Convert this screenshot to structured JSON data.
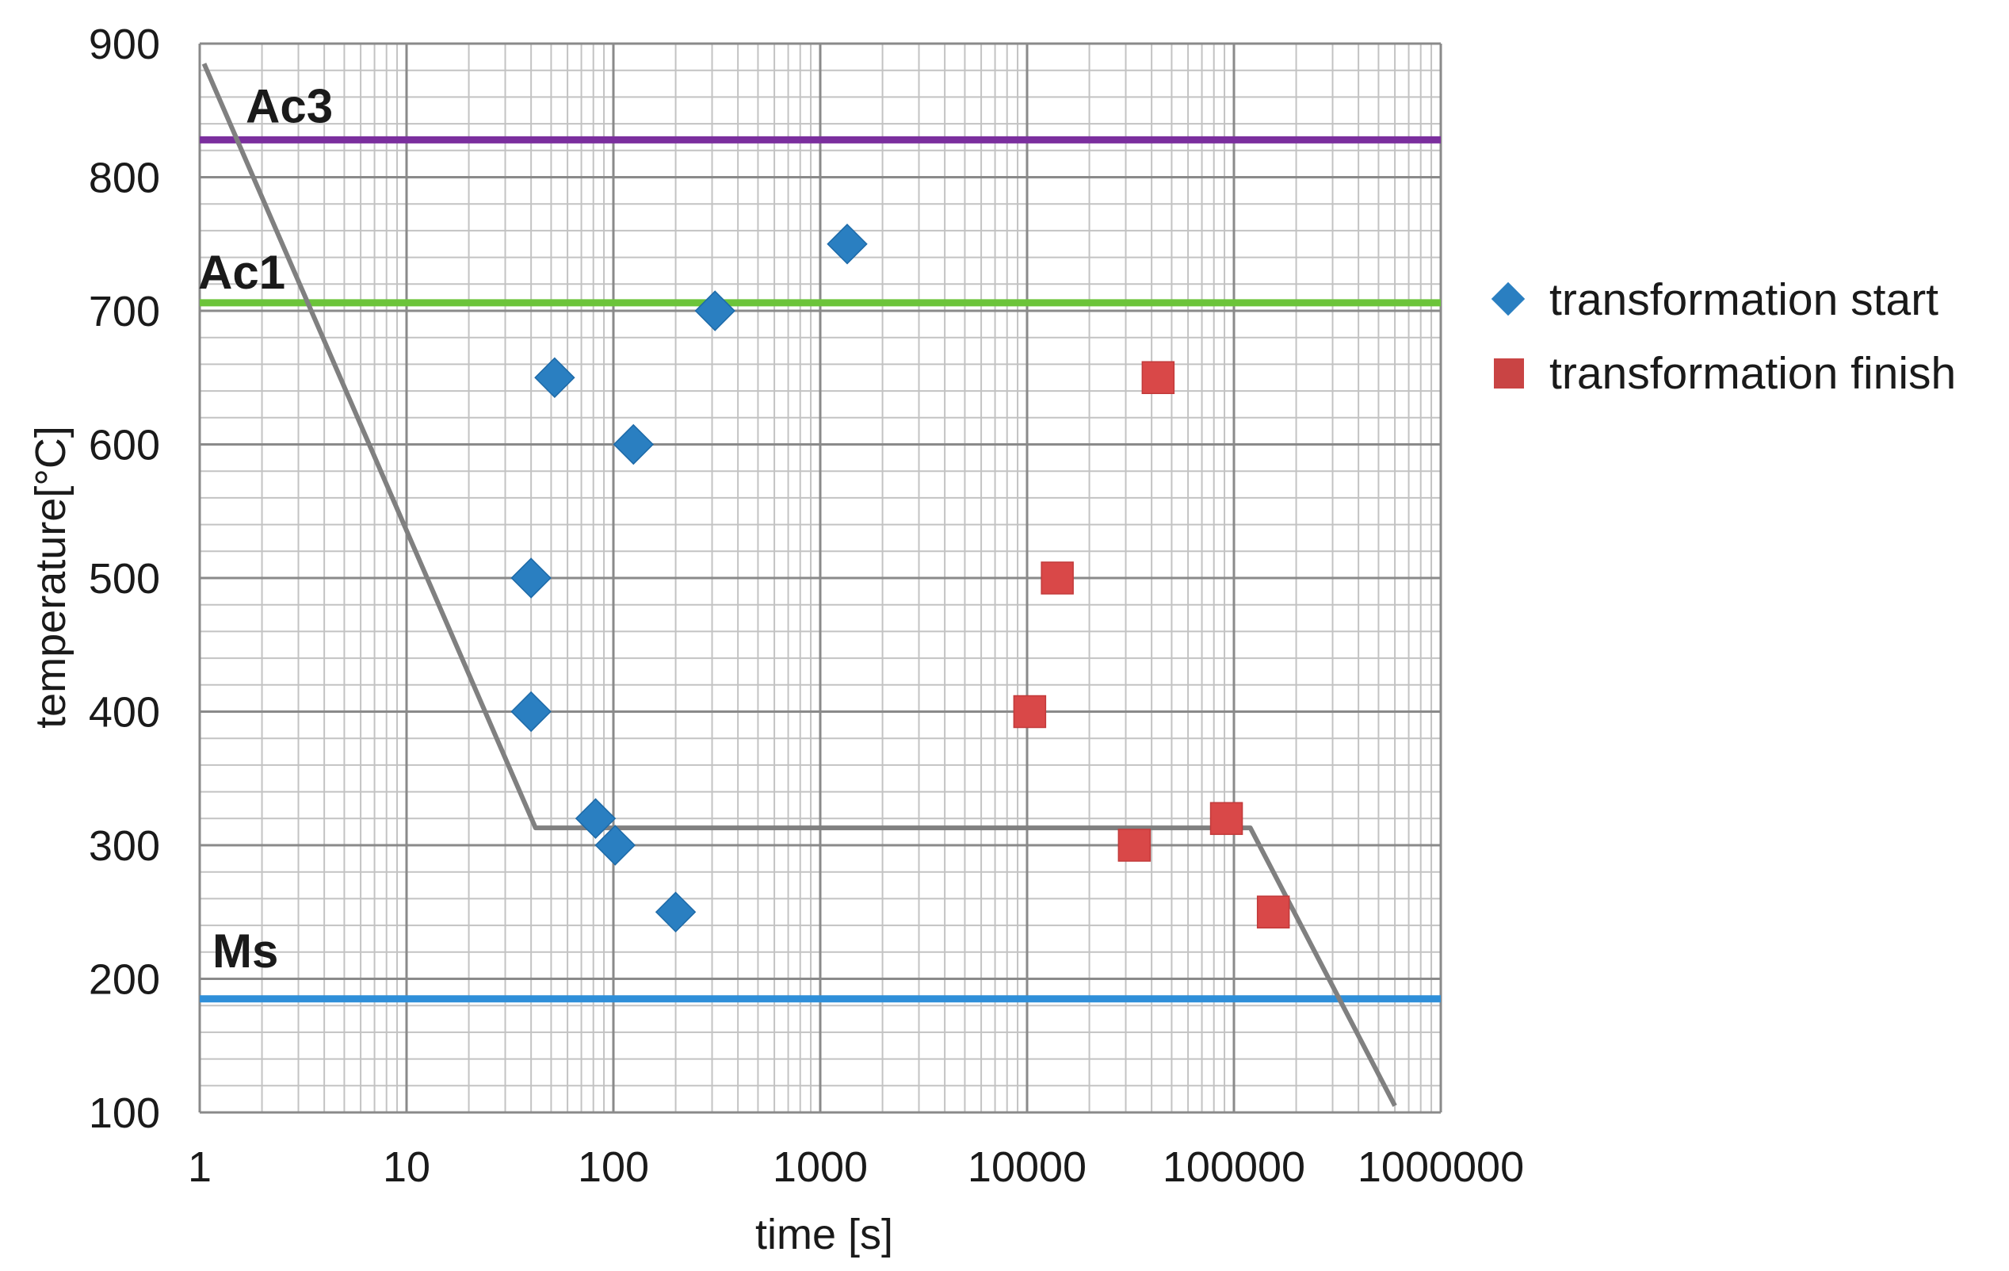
{
  "chart_data": {
    "type": "scatter",
    "xscale": "log",
    "xlim": [
      1,
      1000000
    ],
    "ylim": [
      100,
      900
    ],
    "xlabel": "time [s]",
    "ylabel": "temperature[°C]",
    "x_ticks": [
      "1",
      "10",
      "100",
      "1000",
      "10000",
      "100000",
      "1000000"
    ],
    "y_ticks": [
      "100",
      "200",
      "300",
      "400",
      "500",
      "600",
      "700",
      "800",
      "900"
    ],
    "grid": true,
    "legend_position": "right",
    "series": [
      {
        "name": "transformation start",
        "marker": "diamond",
        "color": "#2a7fc1",
        "points": [
          {
            "x": 40,
            "y": 400
          },
          {
            "x": 40,
            "y": 500
          },
          {
            "x": 52,
            "y": 650
          },
          {
            "x": 82,
            "y": 320
          },
          {
            "x": 102,
            "y": 300
          },
          {
            "x": 125,
            "y": 600
          },
          {
            "x": 200,
            "y": 250
          },
          {
            "x": 310,
            "y": 700
          },
          {
            "x": 1350,
            "y": 750
          }
        ]
      },
      {
        "name": "transformation finish",
        "marker": "square",
        "color": "#d94848",
        "points": [
          {
            "x": 10300,
            "y": 400
          },
          {
            "x": 14000,
            "y": 500
          },
          {
            "x": 33000,
            "y": 300
          },
          {
            "x": 43000,
            "y": 650
          },
          {
            "x": 92000,
            "y": 320
          },
          {
            "x": 155000,
            "y": 250
          }
        ]
      }
    ],
    "reference_lines": [
      {
        "label": "Ac3",
        "y": 828,
        "color": "#7b2f9e"
      },
      {
        "label": "Ac1",
        "y": 706,
        "color": "#6cc43a"
      },
      {
        "label": "Ms",
        "y": 185,
        "color": "#2f8fd9"
      }
    ],
    "cooling_curve": {
      "color": "#808080",
      "points": [
        {
          "x": 1.05,
          "y": 885
        },
        {
          "x": 42,
          "y": 313
        },
        {
          "x": 120000,
          "y": 313
        },
        {
          "x": 600000,
          "y": 105
        }
      ]
    }
  }
}
